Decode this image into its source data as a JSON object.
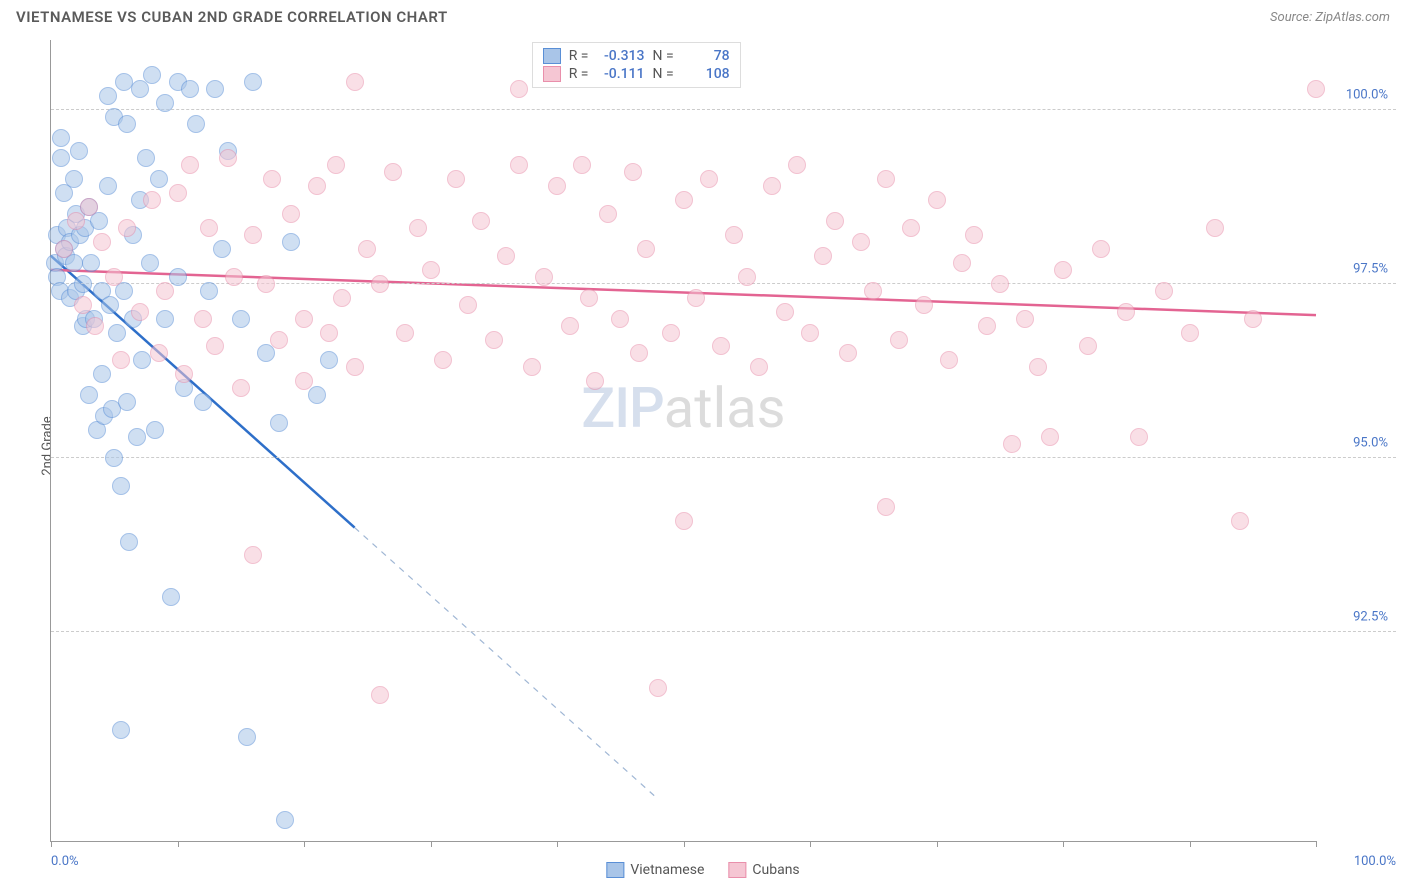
{
  "header": {
    "title": "VIETNAMESE VS CUBAN 2ND GRADE CORRELATION CHART",
    "source": "Source: ZipAtlas.com"
  },
  "watermark": {
    "part1": "ZIP",
    "part2": "atlas"
  },
  "chart": {
    "type": "scatter",
    "ylabel": "2nd Grade",
    "xlim": [
      0,
      100
    ],
    "ylim": [
      89.5,
      101.0
    ],
    "background_color": "#ffffff",
    "grid_color": "#cccccc",
    "axis_color": "#999999",
    "xtick_positions": [
      0,
      10,
      20,
      30,
      40,
      50,
      60,
      70,
      80,
      90,
      100
    ],
    "xtick_labels": {
      "min": "0.0%",
      "max": "100.0%"
    },
    "ytick_positions": [
      92.5,
      95.0,
      97.5,
      100.0
    ],
    "ytick_labels": [
      "92.5%",
      "95.0%",
      "97.5%",
      "100.0%"
    ],
    "marker_radius": 9,
    "marker_opacity": 0.55,
    "label_fontsize": 13,
    "tick_label_color": "#4a76c7",
    "series": [
      {
        "name": "Vietnamese",
        "fill_color": "#a9c5e8",
        "stroke_color": "#5a8fd6",
        "line_color": "#2e6fc9",
        "R": "-0.313",
        "N": "78",
        "regression": {
          "x1": 0,
          "y1": 97.9,
          "x2": 24,
          "y2": 94.0,
          "dash_to_x": 48,
          "dash_to_y": 90.1
        },
        "points": [
          [
            0.3,
            97.8
          ],
          [
            0.5,
            98.2
          ],
          [
            0.5,
            97.6
          ],
          [
            0.8,
            99.6
          ],
          [
            0.8,
            99.3
          ],
          [
            0.7,
            97.4
          ],
          [
            1.0,
            98.8
          ],
          [
            1.0,
            98.0
          ],
          [
            1.2,
            97.9
          ],
          [
            1.3,
            98.3
          ],
          [
            1.5,
            98.1
          ],
          [
            1.5,
            97.3
          ],
          [
            1.8,
            99.0
          ],
          [
            1.8,
            97.8
          ],
          [
            2.0,
            98.5
          ],
          [
            2.0,
            97.4
          ],
          [
            2.2,
            99.4
          ],
          [
            2.3,
            98.2
          ],
          [
            2.5,
            97.5
          ],
          [
            2.5,
            96.9
          ],
          [
            2.7,
            98.3
          ],
          [
            2.8,
            97.0
          ],
          [
            3.0,
            98.6
          ],
          [
            3.0,
            95.9
          ],
          [
            3.2,
            97.8
          ],
          [
            3.4,
            97.0
          ],
          [
            3.6,
            95.4
          ],
          [
            3.8,
            98.4
          ],
          [
            4.0,
            97.4
          ],
          [
            4.0,
            96.2
          ],
          [
            4.2,
            95.6
          ],
          [
            4.5,
            100.2
          ],
          [
            4.5,
            98.9
          ],
          [
            4.7,
            97.2
          ],
          [
            4.8,
            95.7
          ],
          [
            5.0,
            99.9
          ],
          [
            5.0,
            95.0
          ],
          [
            5.2,
            96.8
          ],
          [
            5.5,
            94.6
          ],
          [
            5.5,
            91.1
          ],
          [
            5.8,
            100.4
          ],
          [
            5.8,
            97.4
          ],
          [
            6.0,
            99.8
          ],
          [
            6.0,
            95.8
          ],
          [
            6.2,
            93.8
          ],
          [
            6.5,
            98.2
          ],
          [
            6.5,
            97.0
          ],
          [
            6.8,
            95.3
          ],
          [
            7.0,
            100.3
          ],
          [
            7.0,
            98.7
          ],
          [
            7.2,
            96.4
          ],
          [
            7.5,
            99.3
          ],
          [
            7.8,
            97.8
          ],
          [
            8.0,
            100.5
          ],
          [
            8.2,
            95.4
          ],
          [
            8.5,
            99.0
          ],
          [
            9.0,
            100.1
          ],
          [
            9.0,
            97.0
          ],
          [
            9.5,
            93.0
          ],
          [
            10.0,
            100.4
          ],
          [
            10.0,
            97.6
          ],
          [
            10.5,
            96.0
          ],
          [
            11.0,
            100.3
          ],
          [
            11.5,
            99.8
          ],
          [
            12.0,
            95.8
          ],
          [
            12.5,
            97.4
          ],
          [
            13.0,
            100.3
          ],
          [
            13.5,
            98.0
          ],
          [
            14.0,
            99.4
          ],
          [
            15.0,
            97.0
          ],
          [
            15.5,
            91.0
          ],
          [
            16.0,
            100.4
          ],
          [
            17.0,
            96.5
          ],
          [
            18.0,
            95.5
          ],
          [
            18.5,
            89.8
          ],
          [
            19.0,
            98.1
          ],
          [
            21.0,
            95.9
          ],
          [
            22.0,
            96.4
          ]
        ]
      },
      {
        "name": "Cubans",
        "fill_color": "#f5c6d3",
        "stroke_color": "#e98fab",
        "line_color": "#e36492",
        "R": "-0.111",
        "N": "108",
        "regression": {
          "x1": 0,
          "y1": 97.7,
          "x2": 100,
          "y2": 97.05
        },
        "points": [
          [
            1.0,
            98.0
          ],
          [
            2.0,
            98.4
          ],
          [
            2.5,
            97.2
          ],
          [
            3.0,
            98.6
          ],
          [
            3.5,
            96.9
          ],
          [
            4.0,
            98.1
          ],
          [
            5.0,
            97.6
          ],
          [
            5.5,
            96.4
          ],
          [
            6.0,
            98.3
          ],
          [
            7.0,
            97.1
          ],
          [
            8.0,
            98.7
          ],
          [
            8.5,
            96.5
          ],
          [
            9.0,
            97.4
          ],
          [
            10.0,
            98.8
          ],
          [
            10.5,
            96.2
          ],
          [
            11.0,
            99.2
          ],
          [
            12.0,
            97.0
          ],
          [
            12.5,
            98.3
          ],
          [
            13.0,
            96.6
          ],
          [
            14.0,
            99.3
          ],
          [
            14.5,
            97.6
          ],
          [
            15.0,
            96.0
          ],
          [
            16.0,
            98.2
          ],
          [
            16.0,
            93.6
          ],
          [
            17.0,
            97.5
          ],
          [
            17.5,
            99.0
          ],
          [
            18.0,
            96.7
          ],
          [
            19.0,
            98.5
          ],
          [
            20.0,
            97.0
          ],
          [
            20.0,
            96.1
          ],
          [
            21.0,
            98.9
          ],
          [
            22.0,
            96.8
          ],
          [
            22.5,
            99.2
          ],
          [
            23.0,
            97.3
          ],
          [
            24.0,
            100.4
          ],
          [
            24.0,
            96.3
          ],
          [
            25.0,
            98.0
          ],
          [
            26.0,
            97.5
          ],
          [
            26.0,
            91.6
          ],
          [
            27.0,
            99.1
          ],
          [
            28.0,
            96.8
          ],
          [
            29.0,
            98.3
          ],
          [
            30.0,
            97.7
          ],
          [
            31.0,
            96.4
          ],
          [
            32.0,
            99.0
          ],
          [
            33.0,
            97.2
          ],
          [
            34.0,
            98.4
          ],
          [
            35.0,
            96.7
          ],
          [
            36.0,
            97.9
          ],
          [
            37.0,
            100.3
          ],
          [
            37.0,
            99.2
          ],
          [
            38.0,
            96.3
          ],
          [
            39.0,
            97.6
          ],
          [
            40.0,
            98.9
          ],
          [
            41.0,
            96.9
          ],
          [
            42.0,
            99.2
          ],
          [
            42.5,
            97.3
          ],
          [
            43.0,
            96.1
          ],
          [
            44.0,
            98.5
          ],
          [
            45.0,
            97.0
          ],
          [
            46.0,
            99.1
          ],
          [
            46.5,
            96.5
          ],
          [
            47.0,
            98.0
          ],
          [
            48.0,
            91.7
          ],
          [
            49.0,
            96.8
          ],
          [
            50.0,
            98.7
          ],
          [
            50.0,
            94.1
          ],
          [
            51.0,
            97.3
          ],
          [
            52.0,
            99.0
          ],
          [
            53.0,
            96.6
          ],
          [
            54.0,
            98.2
          ],
          [
            55.0,
            97.6
          ],
          [
            56.0,
            96.3
          ],
          [
            57.0,
            98.9
          ],
          [
            58.0,
            97.1
          ],
          [
            59.0,
            99.2
          ],
          [
            60.0,
            96.8
          ],
          [
            61.0,
            97.9
          ],
          [
            62.0,
            98.4
          ],
          [
            63.0,
            96.5
          ],
          [
            64.0,
            98.1
          ],
          [
            65.0,
            97.4
          ],
          [
            66.0,
            99.0
          ],
          [
            66.0,
            94.3
          ],
          [
            67.0,
            96.7
          ],
          [
            68.0,
            98.3
          ],
          [
            69.0,
            97.2
          ],
          [
            70.0,
            98.7
          ],
          [
            71.0,
            96.4
          ],
          [
            72.0,
            97.8
          ],
          [
            73.0,
            98.2
          ],
          [
            74.0,
            96.9
          ],
          [
            75.0,
            97.5
          ],
          [
            76.0,
            95.2
          ],
          [
            77.0,
            97.0
          ],
          [
            78.0,
            96.3
          ],
          [
            79.0,
            95.3
          ],
          [
            80.0,
            97.7
          ],
          [
            82.0,
            96.6
          ],
          [
            83.0,
            98.0
          ],
          [
            85.0,
            97.1
          ],
          [
            86.0,
            95.3
          ],
          [
            88.0,
            97.4
          ],
          [
            90.0,
            96.8
          ],
          [
            92.0,
            98.3
          ],
          [
            94.0,
            94.1
          ],
          [
            95.0,
            97.0
          ],
          [
            100.0,
            100.3
          ]
        ]
      }
    ]
  },
  "legend_bottom": [
    {
      "label": "Vietnamese",
      "fill": "#a9c5e8",
      "stroke": "#5a8fd6"
    },
    {
      "label": "Cubans",
      "fill": "#f5c6d3",
      "stroke": "#e98fab"
    }
  ]
}
